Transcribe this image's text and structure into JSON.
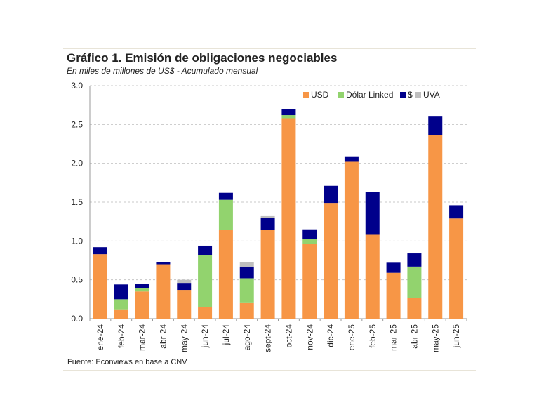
{
  "chart_data": {
    "type": "bar",
    "stacked": true,
    "title": "Gráfico 1. Emisión de obligaciones negociables",
    "subtitle": "En miles de millones de US$ - Acumulado mensual",
    "source": "Fuente: Econviews en base a CNV",
    "xlabel": "",
    "ylabel": "",
    "ylim": [
      0,
      3.0
    ],
    "yticks": [
      "0.0",
      "0.5",
      "1.0",
      "1.5",
      "2.0",
      "2.5",
      "3.0"
    ],
    "grid": true,
    "legend": "top-right",
    "categories": [
      "ene-24",
      "feb-24",
      "mar-24",
      "abr-24",
      "may-24",
      "jun-24",
      "jul-24",
      "ago-24",
      "sept-24",
      "oct-24",
      "nov-24",
      "dic-24",
      "ene-25",
      "feb-25",
      "mar-25",
      "abr-25",
      "may-25",
      "jun-25"
    ],
    "series": [
      {
        "name": "USD",
        "color": "#f79646",
        "values": [
          0.83,
          0.12,
          0.35,
          0.7,
          0.37,
          0.15,
          1.14,
          0.2,
          1.14,
          2.58,
          0.96,
          1.49,
          2.02,
          1.08,
          0.59,
          0.27,
          2.36,
          1.29
        ]
      },
      {
        "name": "Dólar Linked",
        "color": "#92d36e",
        "values": [
          0,
          0.13,
          0.04,
          0,
          0,
          0.67,
          0.39,
          0.32,
          0,
          0.04,
          0.07,
          0,
          0,
          0,
          0,
          0.4,
          0,
          0
        ]
      },
      {
        "name": "$",
        "color": "#00008b",
        "values": [
          0.09,
          0.19,
          0.06,
          0.03,
          0.09,
          0.12,
          0.09,
          0.15,
          0.16,
          0.08,
          0.12,
          0.22,
          0.07,
          0.55,
          0.13,
          0.17,
          0.25,
          0.17
        ]
      },
      {
        "name": "UVA",
        "color": "#bfbfbf",
        "values": [
          0,
          0,
          0,
          0,
          0.04,
          0,
          0,
          0.06,
          0.02,
          0,
          0,
          0,
          0,
          0,
          0,
          0,
          0,
          0
        ]
      }
    ]
  }
}
